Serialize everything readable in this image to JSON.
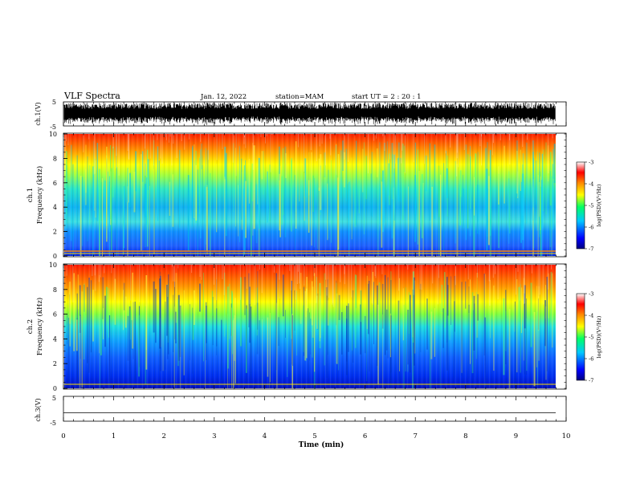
{
  "header": {
    "title": "VLF Spectra",
    "date": "Jan. 12, 2022",
    "station": "station=MAM",
    "start": "start UT =  2 : 20 : 1"
  },
  "chart_data": [
    {
      "name": "ch1-waveform",
      "type": "line",
      "ylabel": "ch.1(V)",
      "ylim": [
        -5,
        5
      ],
      "yticks": [
        "5",
        "-5"
      ],
      "xlim": [
        0,
        10
      ]
    },
    {
      "name": "ch1-spectrogram",
      "type": "heatmap",
      "ylabel_line1": "ch.1",
      "ylabel_line2": "Frequency (kHz)",
      "ylim": [
        0,
        10
      ],
      "yticks": [
        "0",
        "2",
        "4",
        "6",
        "8",
        "10"
      ],
      "xlim": [
        0,
        10
      ],
      "colorbar": {
        "label": "log(PSD)(V²/Hz)",
        "range": [
          -7,
          -3
        ],
        "ticks": [
          "-3",
          "-4",
          "-5",
          "-6",
          "-7"
        ]
      }
    },
    {
      "name": "ch2-spectrogram",
      "type": "heatmap",
      "ylabel_line1": "ch.2",
      "ylabel_line2": "Frequency (kHz)",
      "ylim": [
        0,
        10
      ],
      "yticks": [
        "0",
        "2",
        "4",
        "6",
        "8",
        "10"
      ],
      "xlim": [
        0,
        10
      ],
      "colorbar": {
        "label": "log(PSD)(V²/Hz)",
        "range": [
          -7,
          -3
        ],
        "ticks": [
          "-3",
          "-4",
          "-5",
          "-6",
          "-7"
        ]
      }
    },
    {
      "name": "ch3-waveform",
      "type": "line",
      "ylabel": "ch.3(V)",
      "ylim": [
        -5,
        5
      ],
      "yticks": [
        "5",
        "-5"
      ],
      "xlim": [
        0,
        10
      ],
      "values": [
        -2,
        -2
      ]
    }
  ],
  "xaxis": {
    "label": "Time (min)",
    "range": [
      0,
      10
    ],
    "ticks": [
      "0",
      "1",
      "2",
      "3",
      "4",
      "5",
      "6",
      "7",
      "8",
      "9",
      "10"
    ]
  },
  "colors": {
    "cb_stops": [
      "#00008b",
      "#0000ff",
      "#00c8ff",
      "#00ff66",
      "#ffff00",
      "#ff8800",
      "#ff0000",
      "#ffffff"
    ]
  }
}
